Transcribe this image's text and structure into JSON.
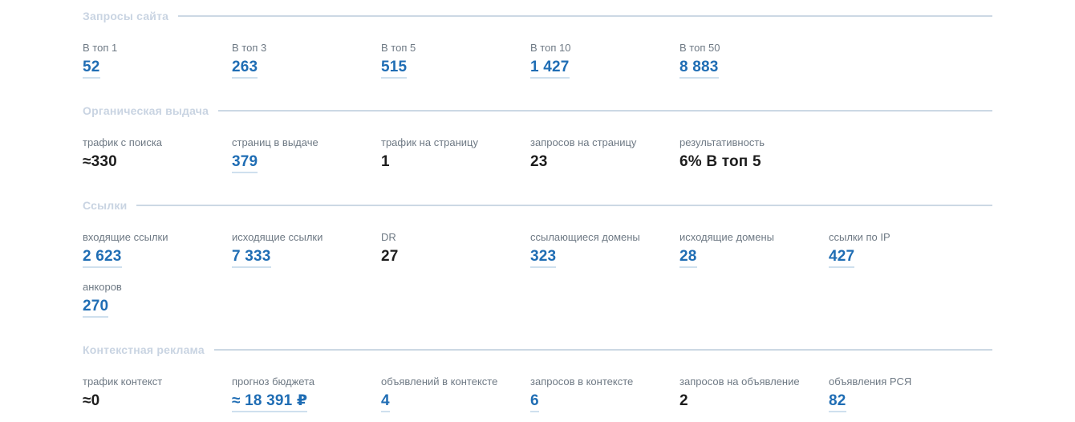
{
  "colors": {
    "accent_link": "#1f6db4",
    "link_underline": "#cfe0ee",
    "section_title": "#c9d4e2",
    "divider": "#ccd8e4",
    "label": "#6e7984",
    "value_dark": "#1d1d1d",
    "background": "#ffffff"
  },
  "sections": [
    {
      "id": "site-queries",
      "title": "Запросы сайта",
      "rows": [
        {
          "cells": [
            {
              "label": "В топ 1",
              "value": "52",
              "link": true
            },
            {
              "label": "В топ 3",
              "value": "263",
              "link": true
            },
            {
              "label": "В топ 5",
              "value": "515",
              "link": true
            },
            {
              "label": "В топ 10",
              "value": "1 427",
              "link": true
            },
            {
              "label": "В топ 50",
              "value": "8 883",
              "link": true
            }
          ]
        }
      ]
    },
    {
      "id": "organic-results",
      "title": "Органическая выдача",
      "rows": [
        {
          "cells": [
            {
              "label": "трафик с поиска",
              "value": "≈330",
              "link": false
            },
            {
              "label": "страниц в выдаче",
              "value": "379",
              "link": true
            },
            {
              "label": "трафик на страницу",
              "value": "1",
              "link": false
            },
            {
              "label": "запросов на страницу",
              "value": "23",
              "link": false
            },
            {
              "label": "результативность",
              "value": "6% В топ 5",
              "link": false
            }
          ]
        }
      ]
    },
    {
      "id": "links",
      "title": "Ссылки",
      "rows": [
        {
          "cells": [
            {
              "label": "входящие ссылки",
              "value": "2 623",
              "link": true
            },
            {
              "label": "исходящие ссылки",
              "value": "7 333",
              "link": true
            },
            {
              "label": "DR",
              "value": "27",
              "link": false
            },
            {
              "label": "ссылающиеся домены",
              "value": "323",
              "link": true
            },
            {
              "label": "исходящие домены",
              "value": "28",
              "link": true
            },
            {
              "label": "ссылки по IP",
              "value": "427",
              "link": true
            }
          ]
        },
        {
          "cells": [
            {
              "label": "анкоров",
              "value": "270",
              "link": true
            }
          ]
        }
      ]
    },
    {
      "id": "contextual-ads",
      "title": "Контекстная реклама",
      "rows": [
        {
          "cells": [
            {
              "label": "трафик контекст",
              "value": "≈0",
              "link": false
            },
            {
              "label": "прогноз бюджета",
              "value": "≈ 18 391 ₽",
              "link": true
            },
            {
              "label": "объявлений в контексте",
              "value": "4",
              "link": true
            },
            {
              "label": "запросов в контексте",
              "value": "6",
              "link": true
            },
            {
              "label": "запросов на объявление",
              "value": "2",
              "link": false
            },
            {
              "label": "объявления РСЯ",
              "value": "82",
              "link": true
            }
          ]
        }
      ]
    }
  ]
}
